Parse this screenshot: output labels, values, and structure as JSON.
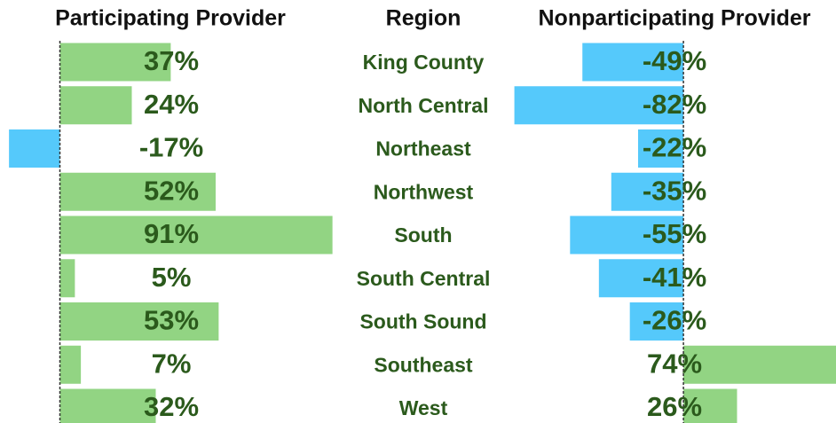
{
  "chart_data": {
    "type": "bar",
    "orientation": "horizontal",
    "category_label": "Region",
    "categories": [
      "King County",
      "North Central",
      "Northeast",
      "Northwest",
      "South",
      "South Central",
      "South Sound",
      "Southeast",
      "West"
    ],
    "positive_color": "#92d483",
    "negative_color": "#55c9fb",
    "series": [
      {
        "name": "Participating Provider",
        "values": [
          37,
          24,
          -17,
          52,
          91,
          5,
          53,
          7,
          32
        ],
        "value_labels": [
          "37%",
          "24%",
          "-17%",
          "52%",
          "91%",
          "5%",
          "53%",
          "7%",
          "32%"
        ],
        "xlim": [
          -20,
          100
        ]
      },
      {
        "name": "Nonparticipating Provider",
        "values": [
          -49,
          -82,
          -22,
          -35,
          -55,
          -41,
          -26,
          74,
          26
        ],
        "value_labels": [
          "-49%",
          "-82%",
          "-22%",
          "-35%",
          "-55%",
          "-41%",
          "-26%",
          "74%",
          "26%"
        ],
        "xlim": [
          -90,
          74
        ]
      }
    ]
  }
}
